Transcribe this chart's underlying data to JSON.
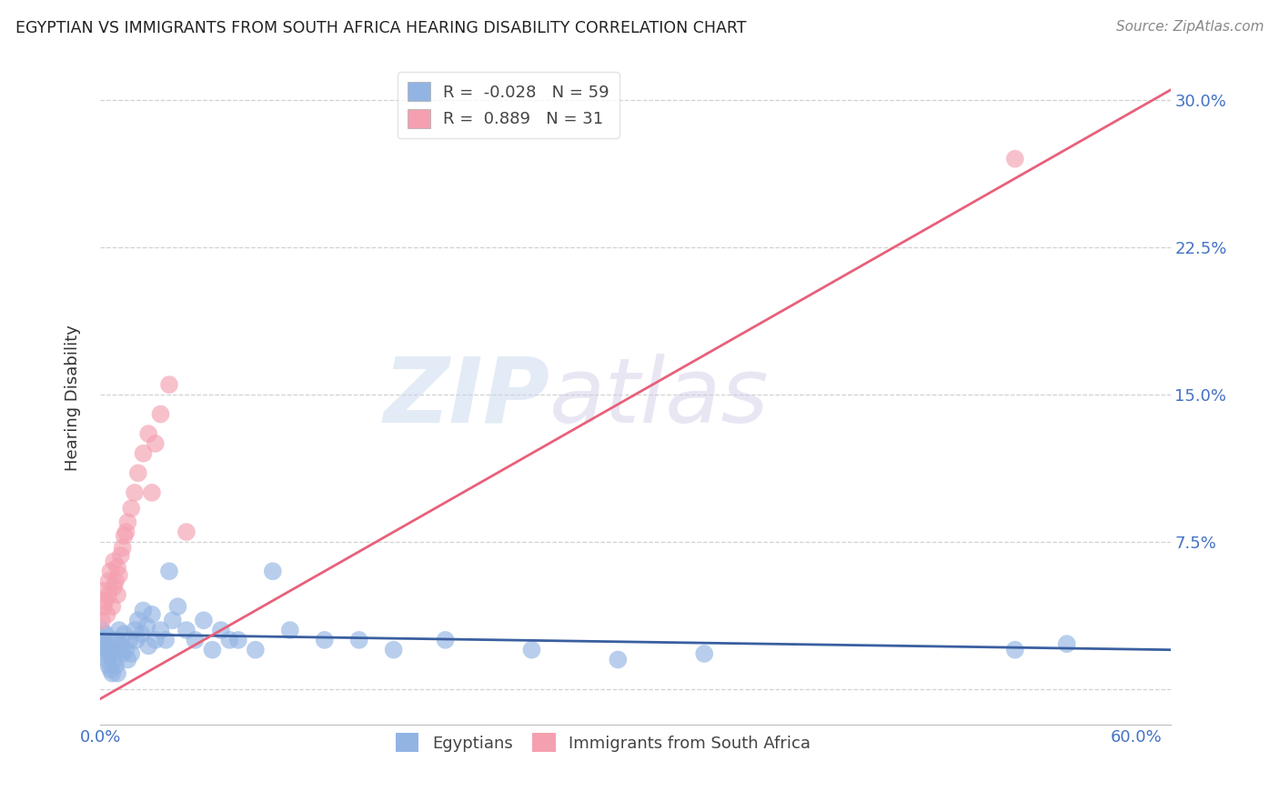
{
  "title": "EGYPTIAN VS IMMIGRANTS FROM SOUTH AFRICA HEARING DISABILITY CORRELATION CHART",
  "source": "Source: ZipAtlas.com",
  "ylabel": "Hearing Disability",
  "xlim": [
    0.0,
    0.62
  ],
  "ylim": [
    -0.018,
    0.315
  ],
  "xlabel_vals": [
    0.0,
    0.1,
    0.2,
    0.3,
    0.4,
    0.5,
    0.6
  ],
  "ylabel_vals": [
    0.0,
    0.075,
    0.15,
    0.225,
    0.3
  ],
  "R_egyptian": -0.028,
  "N_egyptian": 59,
  "R_sa": 0.889,
  "N_sa": 31,
  "legend_labels": [
    "Egyptians",
    "Immigrants from South Africa"
  ],
  "color_egyptian": "#92b4e3",
  "color_sa": "#f4a0b0",
  "line_color_egyptian": "#3a5fa0",
  "line_color_sa": "#e8607a",
  "watermark_zip": "ZIP",
  "watermark_atlas": "atlas",
  "eg_x": [
    0.001,
    0.002,
    0.002,
    0.003,
    0.003,
    0.004,
    0.004,
    0.005,
    0.005,
    0.006,
    0.006,
    0.007,
    0.007,
    0.008,
    0.008,
    0.009,
    0.01,
    0.01,
    0.011,
    0.012,
    0.013,
    0.014,
    0.015,
    0.016,
    0.017,
    0.018,
    0.02,
    0.021,
    0.022,
    0.024,
    0.025,
    0.027,
    0.028,
    0.03,
    0.032,
    0.035,
    0.038,
    0.04,
    0.042,
    0.045,
    0.05,
    0.055,
    0.06,
    0.065,
    0.07,
    0.075,
    0.08,
    0.09,
    0.1,
    0.11,
    0.13,
    0.15,
    0.17,
    0.2,
    0.25,
    0.3,
    0.35,
    0.53,
    0.56
  ],
  "eg_y": [
    0.03,
    0.025,
    0.022,
    0.028,
    0.018,
    0.02,
    0.015,
    0.022,
    0.012,
    0.018,
    0.01,
    0.025,
    0.008,
    0.02,
    0.015,
    0.012,
    0.025,
    0.008,
    0.03,
    0.022,
    0.018,
    0.028,
    0.02,
    0.015,
    0.025,
    0.018,
    0.03,
    0.025,
    0.035,
    0.028,
    0.04,
    0.032,
    0.022,
    0.038,
    0.025,
    0.03,
    0.025,
    0.06,
    0.035,
    0.042,
    0.03,
    0.025,
    0.035,
    0.02,
    0.03,
    0.025,
    0.025,
    0.02,
    0.06,
    0.03,
    0.025,
    0.025,
    0.02,
    0.025,
    0.02,
    0.015,
    0.018,
    0.02,
    0.023
  ],
  "sa_x": [
    0.001,
    0.002,
    0.002,
    0.003,
    0.004,
    0.005,
    0.005,
    0.006,
    0.007,
    0.008,
    0.008,
    0.009,
    0.01,
    0.01,
    0.011,
    0.012,
    0.013,
    0.014,
    0.015,
    0.016,
    0.018,
    0.02,
    0.022,
    0.025,
    0.028,
    0.03,
    0.032,
    0.035,
    0.04,
    0.05,
    0.53
  ],
  "sa_y": [
    0.035,
    0.042,
    0.05,
    0.045,
    0.038,
    0.055,
    0.048,
    0.06,
    0.042,
    0.052,
    0.065,
    0.055,
    0.048,
    0.062,
    0.058,
    0.068,
    0.072,
    0.078,
    0.08,
    0.085,
    0.092,
    0.1,
    0.11,
    0.12,
    0.13,
    0.1,
    0.125,
    0.14,
    0.155,
    0.08,
    0.27
  ],
  "eg_line_x": [
    0.0,
    0.62
  ],
  "eg_line_y": [
    0.028,
    0.02
  ],
  "sa_line_x": [
    0.0,
    0.62
  ],
  "sa_line_y": [
    -0.005,
    0.305
  ]
}
